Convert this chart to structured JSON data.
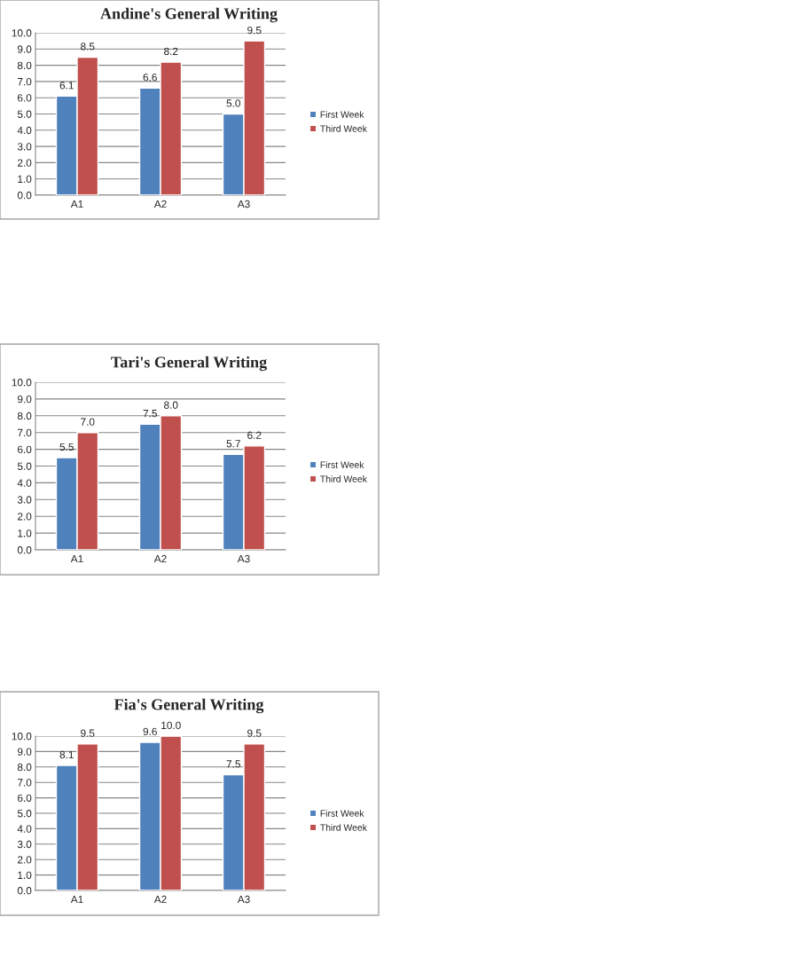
{
  "chart_data": [
    {
      "type": "bar",
      "title": "Andine's General Writing",
      "categories": [
        "A1",
        "A2",
        "A3"
      ],
      "series": [
        {
          "name": "First Week",
          "color": "#4f81bd",
          "values": [
            6.1,
            6.6,
            5.0
          ],
          "value_labels": [
            "6.1",
            "6.6",
            "5.0"
          ]
        },
        {
          "name": "Third Week",
          "color": "#c0504d",
          "values": [
            8.5,
            8.2,
            9.5
          ],
          "value_labels": [
            "8.5",
            "8.2",
            "9.5"
          ]
        }
      ],
      "ylim": [
        0,
        10
      ],
      "yticks": [
        {
          "value": 0,
          "label": "0.0"
        },
        {
          "value": 1,
          "label": "1.0"
        },
        {
          "value": 2,
          "label": "2.0"
        },
        {
          "value": 3,
          "label": "3.0"
        },
        {
          "value": 4,
          "label": "4.0"
        },
        {
          "value": 5,
          "label": "5.0"
        },
        {
          "value": 6,
          "label": "6.0"
        },
        {
          "value": 7,
          "label": "7.0"
        },
        {
          "value": 8,
          "label": "8.0"
        },
        {
          "value": 9,
          "label": "9.0"
        },
        {
          "value": 10,
          "label": "10.0"
        }
      ],
      "grid": "y",
      "legend": "right"
    },
    {
      "type": "bar",
      "title": "Tari's General Writing",
      "categories": [
        "A1",
        "A2",
        "A3"
      ],
      "series": [
        {
          "name": "First Week",
          "color": "#4f81bd",
          "values": [
            5.5,
            7.5,
            5.7
          ],
          "value_labels": [
            "5.5",
            "7.5",
            "5.7"
          ]
        },
        {
          "name": "Third Week",
          "color": "#c0504d",
          "values": [
            7.0,
            8.0,
            6.2
          ],
          "value_labels": [
            "7.0",
            "8.0",
            "6.2"
          ]
        }
      ],
      "ylim": [
        0,
        10
      ],
      "yticks": [
        {
          "value": 0,
          "label": "0.0"
        },
        {
          "value": 1,
          "label": "1.0"
        },
        {
          "value": 2,
          "label": "2.0"
        },
        {
          "value": 3,
          "label": "3.0"
        },
        {
          "value": 4,
          "label": "4.0"
        },
        {
          "value": 5,
          "label": "5.0"
        },
        {
          "value": 6,
          "label": "6.0"
        },
        {
          "value": 7,
          "label": "7.0"
        },
        {
          "value": 8,
          "label": "8.0"
        },
        {
          "value": 9,
          "label": "9.0"
        },
        {
          "value": 10,
          "label": "10.0"
        }
      ],
      "grid": "y",
      "legend": "right"
    },
    {
      "type": "bar",
      "title": "Fia's General Writing",
      "categories": [
        "A1",
        "A2",
        "A3"
      ],
      "series": [
        {
          "name": "First Week",
          "color": "#4f81bd",
          "values": [
            8.1,
            9.6,
            7.5
          ],
          "value_labels": [
            "8.1",
            "9.6",
            "7.5"
          ]
        },
        {
          "name": "Third Week",
          "color": "#c0504d",
          "values": [
            9.5,
            10.0,
            9.5
          ],
          "value_labels": [
            "9.5",
            "10.0",
            "9.5"
          ]
        }
      ],
      "ylim": [
        0,
        10
      ],
      "yticks": [
        {
          "value": 0,
          "label": "0.0"
        },
        {
          "value": 1,
          "label": "1.0"
        },
        {
          "value": 2,
          "label": "2.0"
        },
        {
          "value": 3,
          "label": "3.0"
        },
        {
          "value": 4,
          "label": "4.0"
        },
        {
          "value": 5,
          "label": "5.0"
        },
        {
          "value": 6,
          "label": "6.0"
        },
        {
          "value": 7,
          "label": "7.0"
        },
        {
          "value": 8,
          "label": "8.0"
        },
        {
          "value": 9,
          "label": "9.0"
        },
        {
          "value": 10,
          "label": "10.0"
        }
      ],
      "grid": "y",
      "legend": "right"
    }
  ]
}
